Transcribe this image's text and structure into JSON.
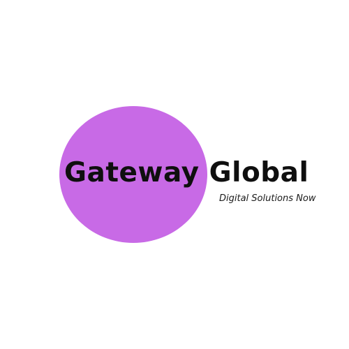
{
  "logo": {
    "brand_name": "Gateway Global",
    "tagline": "Digital Solutions Now"
  },
  "colors": {
    "background": "#ffffff",
    "circle": "#c86ae6",
    "brand_text": "#0f0f0f",
    "tagline_text": "#1a1a1a"
  }
}
